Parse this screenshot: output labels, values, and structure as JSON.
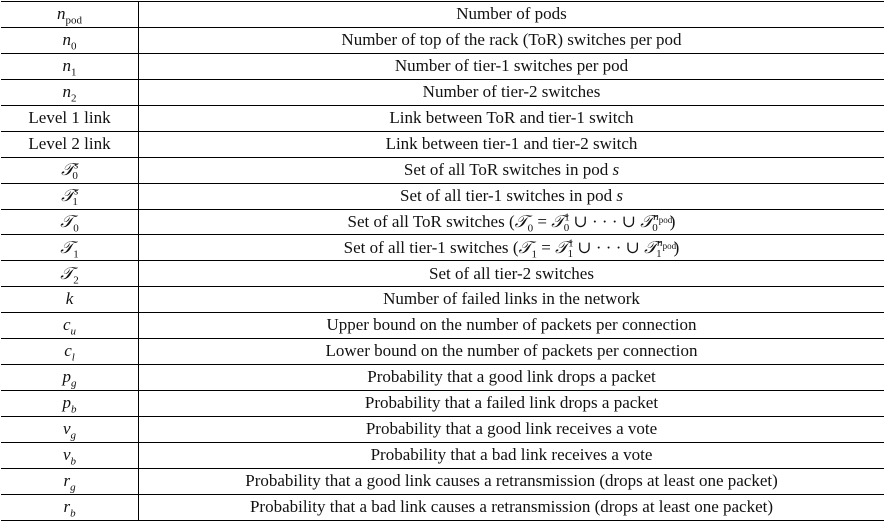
{
  "rows": [
    {
      "symbol": "n_pod",
      "description": "Number of pods"
    },
    {
      "symbol": "n_0",
      "description": "Number of top of the rack (ToR) switches per pod"
    },
    {
      "symbol": "n_1",
      "description": "Number of tier-1 switches per pod"
    },
    {
      "symbol": "n_2",
      "description": "Number of tier-2 switches"
    },
    {
      "symbol": "Level 1 link",
      "description": "Link between ToR and tier-1 switch"
    },
    {
      "symbol": "Level 2 link",
      "description": "Link between tier-1 and tier-2 switch"
    },
    {
      "symbol": "T_0^s",
      "description": "Set of all ToR switches in pod s"
    },
    {
      "symbol": "T_1^s",
      "description": "Set of all tier-1 switches in pod s"
    },
    {
      "symbol": "T_0",
      "description": "Set of all ToR switches (T_0 = T_0^1 ∪ · · · ∪ T_0^n_pod)"
    },
    {
      "symbol": "T_1",
      "description": "Set of all tier-1 switches (T_1 = T_1^1 ∪ · · · ∪ T_1^n_pod)"
    },
    {
      "symbol": "T_2",
      "description": "Set of all tier-2 switches"
    },
    {
      "symbol": "k",
      "description": "Number of failed links in the network"
    },
    {
      "symbol": "c_u",
      "description": "Upper bound on the number of packets per connection"
    },
    {
      "symbol": "c_l",
      "description": "Lower bound on the number of packets per connection"
    },
    {
      "symbol": "p_g",
      "description": "Probability that a good link drops a packet"
    },
    {
      "symbol": "p_b",
      "description": "Probability that a failed link drops a packet"
    },
    {
      "symbol": "v_g",
      "description": "Probability that a good link receives a vote"
    },
    {
      "symbol": "v_b",
      "description": "Probability that a bad link receives a vote"
    },
    {
      "symbol": "r_g",
      "description": "Probability that a good link causes a retransmission (drops at least one packet)"
    },
    {
      "symbol": "r_b",
      "description": "Probability that a bad link causes a retransmission (drops at least one packet)"
    }
  ],
  "glyphs": {
    "cal_t": "𝒯",
    "union": "∪",
    "dots": "· · ·",
    "open_paren": "(",
    "close_paren": ")",
    "equals": "=",
    "sub_pod": "pod"
  },
  "symbol_parts": {
    "n": "n",
    "k": "k",
    "c": "c",
    "p": "p",
    "v": "v",
    "r": "r",
    "s": "s",
    "u": "u",
    "l": "l",
    "g": "g",
    "b": "b",
    "zero": "0",
    "one": "1",
    "two": "2",
    "level1": "Level 1 link",
    "level2": "Level 2 link"
  },
  "text_parts": {
    "row0": "Number of pods",
    "row1": "Number of top of the rack (ToR) switches per pod",
    "row2": "Number of tier-1 switches per pod",
    "row3": "Number of tier-2 switches",
    "row4": "Link between ToR and tier-1 switch",
    "row5": "Link between tier-1 and tier-2 switch",
    "row6_pre": "Set of all ToR switches in pod",
    "row7_pre": "Set of all tier-1 switches in pod",
    "row8_pre": "Set of all ToR switches",
    "row9_pre": "Set of all tier-1 switches",
    "row10": "Set of all tier-2 switches",
    "row11": "Number of failed links in the network",
    "row12": "Upper bound on the number of packets per connection",
    "row13": "Lower bound on the number of packets per connection",
    "row14": "Probability that a good link drops a packet",
    "row15": "Probability that a failed link drops a packet",
    "row16": "Probability that a good link receives a vote",
    "row17": "Probability that a bad link receives a vote",
    "row18": "Probability that a good link causes a retransmission (drops at least one packet)",
    "row19": "Probability that a bad link causes a retransmission (drops at least one packet)"
  }
}
